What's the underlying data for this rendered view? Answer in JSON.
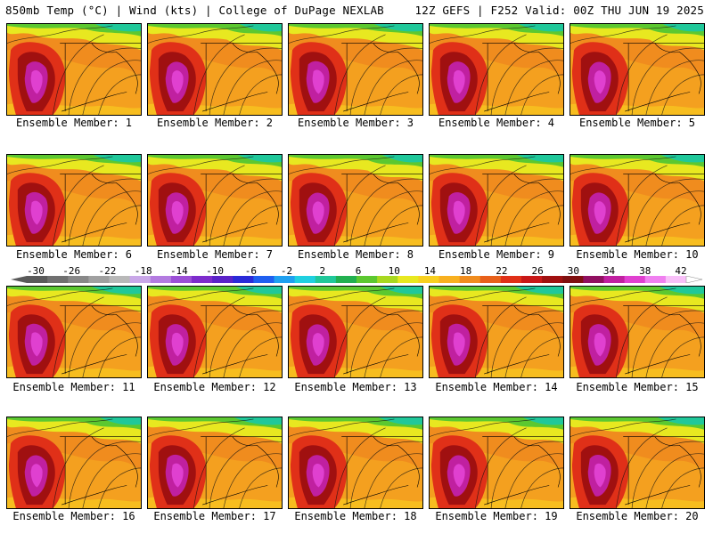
{
  "header": {
    "left": "850mb Temp (°C) | Wind (kts) | College of DuPage NEXLAB",
    "right": "12Z GEFS | F252 Valid: 00Z THU JUN 19 2025"
  },
  "member_label": "Ensemble Member:",
  "members": [
    "1",
    "2",
    "3",
    "4",
    "5",
    "6",
    "7",
    "8",
    "9",
    "10",
    "11",
    "12",
    "13",
    "14",
    "15",
    "16",
    "17",
    "18",
    "19",
    "20"
  ],
  "colorbar": {
    "labels": [
      "-30",
      "-26",
      "-22",
      "-18",
      "-14",
      "-10",
      "-6",
      "-2",
      "2",
      "6",
      "10",
      "14",
      "18",
      "22",
      "26",
      "30",
      "34",
      "38",
      "42"
    ],
    "colors": [
      "#5a5a5a",
      "#707070",
      "#888888",
      "#a0a0a0",
      "#b8b8b8",
      "#c9a7e8",
      "#b37be0",
      "#9b4fd6",
      "#7d2ccc",
      "#5a22c8",
      "#2a2ad8",
      "#1f5ff0",
      "#1fa0f0",
      "#20d0e0",
      "#20c89a",
      "#22b050",
      "#5cc830",
      "#a8d820",
      "#e8e820",
      "#f8d020",
      "#f8b020",
      "#f08c1e",
      "#e8601a",
      "#e03018",
      "#c81818",
      "#a01010",
      "#801010",
      "#901060",
      "#c020a0",
      "#e040d0",
      "#f080f0",
      "#f8c0f8"
    ]
  }
}
